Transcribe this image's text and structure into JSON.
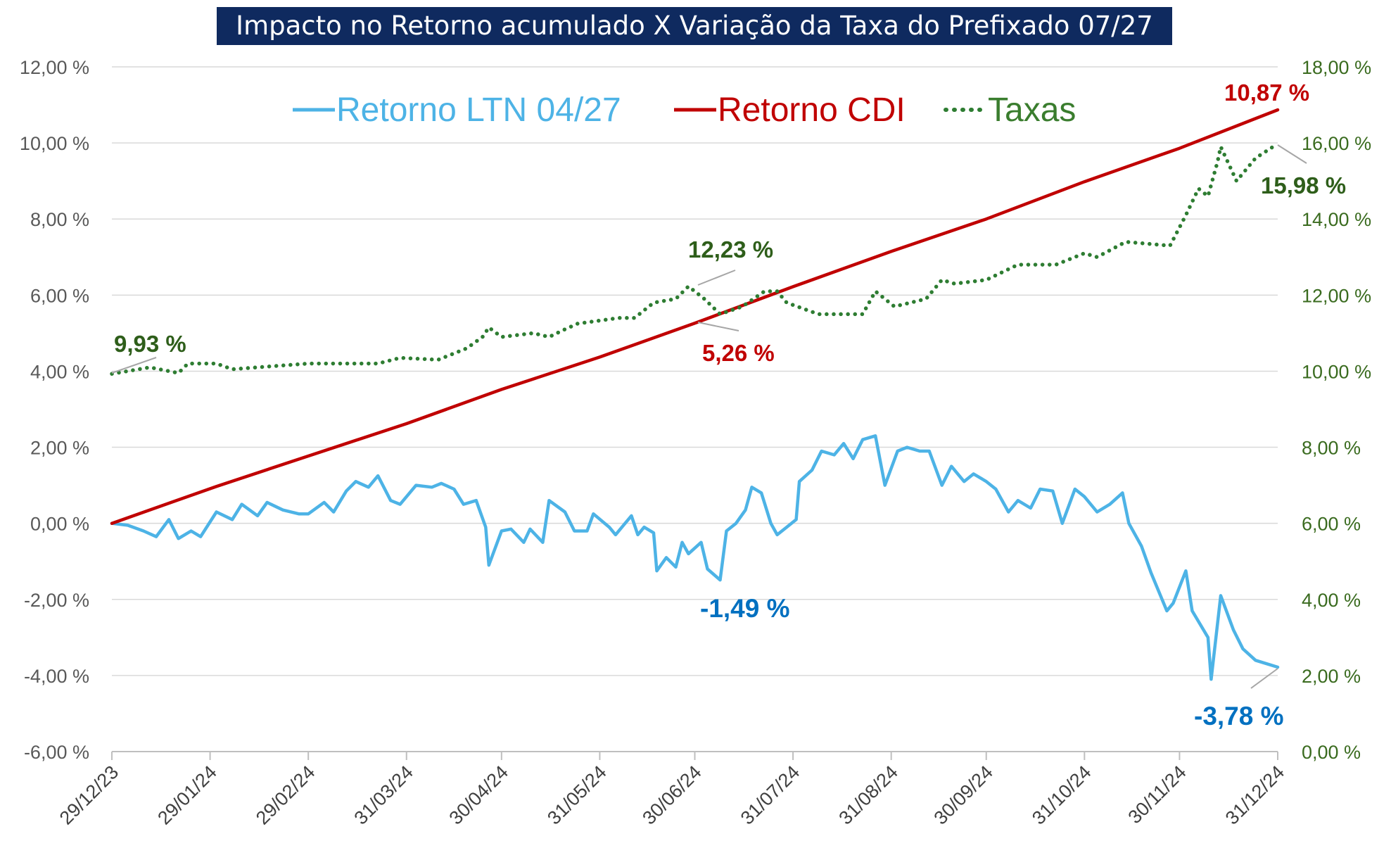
{
  "title": "Impacto no Retorno acumulado X Variação da Taxa do Prefixado 07/27",
  "colors": {
    "ltn": "#4db3e6",
    "cdi": "#c00000",
    "taxas": "#2e7d32",
    "title_bg": "#0f2a5f",
    "ltn_label": "#0070c0",
    "cdi_label": "#c00000",
    "taxas_label": "#2e5e1a",
    "grid": "#d9d9d9"
  },
  "legend": {
    "ltn": "Retorno LTN 04/27",
    "cdi": "Retorno CDI",
    "taxas": "Taxas"
  },
  "axes": {
    "left_ticks": [
      "12,00 %",
      "10,00 %",
      "8,00 %",
      "6,00 %",
      "4,00 %",
      "2,00 %",
      "0,00 %",
      "-2,00 %",
      "-4,00 %",
      "-6,00 %"
    ],
    "right_ticks": [
      "18,00 %",
      "16,00 %",
      "14,00 %",
      "12,00 %",
      "10,00 %",
      "8,00 %",
      "6,00 %",
      "4,00 %",
      "2,00 %",
      "0,00 %"
    ],
    "x_ticks": [
      "29/12/23",
      "29/01/24",
      "29/02/24",
      "31/03/24",
      "30/04/24",
      "31/05/24",
      "30/06/24",
      "31/07/24",
      "31/08/24",
      "30/09/24",
      "31/10/24",
      "30/11/24",
      "31/12/24"
    ]
  },
  "annotations": {
    "taxas_start": "9,93 %",
    "taxas_mid": "12,23 %",
    "taxas_end": "15,98 %",
    "cdi_mid": "5,26 %",
    "cdi_end": "10,87 %",
    "ltn_mid": "-1,49 %",
    "ltn_end": "-3,78 %"
  },
  "chart_data": {
    "type": "line",
    "title": "Impacto no Retorno acumulado X Variação da Taxa do Prefixado 07/27",
    "y_left_range": [
      -6,
      12
    ],
    "y_right_range": [
      0,
      18
    ],
    "x_range": [
      "2023-12-29",
      "2024-12-31"
    ],
    "grid": true,
    "legend_position": "top",
    "series": [
      {
        "name": "Retorno LTN 04/27",
        "axis": "left",
        "points": [
          [
            "2023-12-29",
            0.0
          ],
          [
            "2024-01-03",
            -0.05
          ],
          [
            "2024-01-08",
            -0.2
          ],
          [
            "2024-01-12",
            -0.35
          ],
          [
            "2024-01-16",
            0.1
          ],
          [
            "2024-01-19",
            -0.4
          ],
          [
            "2024-01-23",
            -0.2
          ],
          [
            "2024-01-26",
            -0.35
          ],
          [
            "2024-01-31",
            0.3
          ],
          [
            "2024-02-05",
            0.1
          ],
          [
            "2024-02-08",
            0.5
          ],
          [
            "2024-02-13",
            0.2
          ],
          [
            "2024-02-16",
            0.55
          ],
          [
            "2024-02-21",
            0.35
          ],
          [
            "2024-02-26",
            0.25
          ],
          [
            "2024-02-29",
            0.25
          ],
          [
            "2024-03-05",
            0.55
          ],
          [
            "2024-03-08",
            0.3
          ],
          [
            "2024-03-12",
            0.85
          ],
          [
            "2024-03-15",
            1.1
          ],
          [
            "2024-03-19",
            0.95
          ],
          [
            "2024-03-22",
            1.25
          ],
          [
            "2024-03-26",
            0.6
          ],
          [
            "2024-03-29",
            0.5
          ],
          [
            "2024-04-03",
            1.0
          ],
          [
            "2024-04-08",
            0.95
          ],
          [
            "2024-04-11",
            1.05
          ],
          [
            "2024-04-15",
            0.9
          ],
          [
            "2024-04-18",
            0.5
          ],
          [
            "2024-04-22",
            0.6
          ],
          [
            "2024-04-25",
            -0.1
          ],
          [
            "2024-04-26",
            -1.1
          ],
          [
            "2024-04-30",
            -0.2
          ],
          [
            "2024-05-03",
            -0.15
          ],
          [
            "2024-05-07",
            -0.5
          ],
          [
            "2024-05-09",
            -0.15
          ],
          [
            "2024-05-13",
            -0.5
          ],
          [
            "2024-05-15",
            0.6
          ],
          [
            "2024-05-20",
            0.3
          ],
          [
            "2024-05-23",
            -0.2
          ],
          [
            "2024-05-27",
            -0.2
          ],
          [
            "2024-05-29",
            0.25
          ],
          [
            "2024-06-03",
            -0.1
          ],
          [
            "2024-06-05",
            -0.3
          ],
          [
            "2024-06-10",
            0.2
          ],
          [
            "2024-06-12",
            -0.3
          ],
          [
            "2024-06-14",
            -0.1
          ],
          [
            "2024-06-17",
            -0.25
          ],
          [
            "2024-06-18",
            -1.25
          ],
          [
            "2024-06-21",
            -0.9
          ],
          [
            "2024-06-24",
            -1.15
          ],
          [
            "2024-06-26",
            -0.5
          ],
          [
            "2024-06-28",
            -0.8
          ],
          [
            "2024-07-02",
            -0.5
          ],
          [
            "2024-07-04",
            -1.2
          ],
          [
            "2024-07-08",
            -1.49
          ],
          [
            "2024-07-10",
            -0.2
          ],
          [
            "2024-07-13",
            0.0
          ],
          [
            "2024-07-16",
            0.35
          ],
          [
            "2024-07-18",
            0.95
          ],
          [
            "2024-07-21",
            0.8
          ],
          [
            "2024-07-24",
            0.0
          ],
          [
            "2024-07-26",
            -0.3
          ],
          [
            "2024-07-29",
            -0.1
          ],
          [
            "2024-08-01",
            0.1
          ],
          [
            "2024-08-02",
            1.1
          ],
          [
            "2024-08-06",
            1.4
          ],
          [
            "2024-08-09",
            1.9
          ],
          [
            "2024-08-13",
            1.8
          ],
          [
            "2024-08-16",
            2.1
          ],
          [
            "2024-08-19",
            1.7
          ],
          [
            "2024-08-22",
            2.2
          ],
          [
            "2024-08-26",
            2.3
          ],
          [
            "2024-08-29",
            1.0
          ],
          [
            "2024-09-02",
            1.9
          ],
          [
            "2024-09-05",
            2.0
          ],
          [
            "2024-09-09",
            1.9
          ],
          [
            "2024-09-12",
            1.9
          ],
          [
            "2024-09-16",
            1.0
          ],
          [
            "2024-09-19",
            1.5
          ],
          [
            "2024-09-23",
            1.1
          ],
          [
            "2024-09-26",
            1.3
          ],
          [
            "2024-09-30",
            1.1
          ],
          [
            "2024-10-03",
            0.9
          ],
          [
            "2024-10-07",
            0.3
          ],
          [
            "2024-10-10",
            0.6
          ],
          [
            "2024-10-14",
            0.4
          ],
          [
            "2024-10-17",
            0.9
          ],
          [
            "2024-10-21",
            0.85
          ],
          [
            "2024-10-24",
            0.0
          ],
          [
            "2024-10-28",
            0.9
          ],
          [
            "2024-10-31",
            0.7
          ],
          [
            "2024-11-04",
            0.3
          ],
          [
            "2024-11-08",
            0.5
          ],
          [
            "2024-11-12",
            0.8
          ],
          [
            "2024-11-14",
            0.0
          ],
          [
            "2024-11-18",
            -0.6
          ],
          [
            "2024-11-21",
            -1.3
          ],
          [
            "2024-11-26",
            -2.3
          ],
          [
            "2024-11-28",
            -2.1
          ],
          [
            "2024-12-02",
            -1.25
          ],
          [
            "2024-12-04",
            -2.3
          ],
          [
            "2024-12-09",
            -3.0
          ],
          [
            "2024-12-10",
            -4.1
          ],
          [
            "2024-12-13",
            -1.9
          ],
          [
            "2024-12-17",
            -2.8
          ],
          [
            "2024-12-20",
            -3.3
          ],
          [
            "2024-12-24",
            -3.6
          ],
          [
            "2024-12-31",
            -3.78
          ]
        ]
      },
      {
        "name": "Retorno CDI",
        "axis": "left",
        "points": [
          [
            "2023-12-29",
            0.0
          ],
          [
            "2024-01-31",
            0.97
          ],
          [
            "2024-02-29",
            1.77
          ],
          [
            "2024-03-31",
            2.62
          ],
          [
            "2024-04-30",
            3.52
          ],
          [
            "2024-05-31",
            4.37
          ],
          [
            "2024-06-30",
            5.26
          ],
          [
            "2024-07-31",
            6.22
          ],
          [
            "2024-08-31",
            7.15
          ],
          [
            "2024-09-30",
            8.0
          ],
          [
            "2024-10-31",
            8.98
          ],
          [
            "2024-11-30",
            9.86
          ],
          [
            "2024-12-31",
            10.87
          ]
        ]
      },
      {
        "name": "Taxas",
        "axis": "right",
        "points": [
          [
            "2023-12-29",
            9.93
          ],
          [
            "2024-01-10",
            10.1
          ],
          [
            "2024-01-19",
            9.95
          ],
          [
            "2024-01-22",
            10.2
          ],
          [
            "2024-01-31",
            10.2
          ],
          [
            "2024-02-05",
            10.05
          ],
          [
            "2024-02-29",
            10.2
          ],
          [
            "2024-03-12",
            10.2
          ],
          [
            "2024-03-22",
            10.2
          ],
          [
            "2024-03-29",
            10.35
          ],
          [
            "2024-04-10",
            10.3
          ],
          [
            "2024-04-19",
            10.6
          ],
          [
            "2024-04-24",
            10.9
          ],
          [
            "2024-04-26",
            11.15
          ],
          [
            "2024-04-30",
            10.9
          ],
          [
            "2024-05-10",
            11.0
          ],
          [
            "2024-05-15",
            10.9
          ],
          [
            "2024-05-20",
            11.1
          ],
          [
            "2024-05-24",
            11.25
          ],
          [
            "2024-06-06",
            11.4
          ],
          [
            "2024-06-11",
            11.4
          ],
          [
            "2024-06-17",
            11.8
          ],
          [
            "2024-06-24",
            11.9
          ],
          [
            "2024-06-28",
            12.23
          ],
          [
            "2024-07-03",
            11.9
          ],
          [
            "2024-07-08",
            11.5
          ],
          [
            "2024-07-15",
            11.7
          ],
          [
            "2024-07-22",
            12.1
          ],
          [
            "2024-07-26",
            12.1
          ],
          [
            "2024-07-29",
            11.8
          ],
          [
            "2024-08-08",
            11.5
          ],
          [
            "2024-08-22",
            11.5
          ],
          [
            "2024-08-26",
            12.1
          ],
          [
            "2024-09-01",
            11.7
          ],
          [
            "2024-09-11",
            11.9
          ],
          [
            "2024-09-16",
            12.4
          ],
          [
            "2024-09-20",
            12.3
          ],
          [
            "2024-09-30",
            12.4
          ],
          [
            "2024-10-10",
            12.8
          ],
          [
            "2024-10-22",
            12.8
          ],
          [
            "2024-10-31",
            13.1
          ],
          [
            "2024-11-04",
            13.0
          ],
          [
            "2024-11-13",
            13.4
          ],
          [
            "2024-11-27",
            13.3
          ],
          [
            "2024-12-02",
            14.1
          ],
          [
            "2024-12-06",
            14.8
          ],
          [
            "2024-12-09",
            14.6
          ],
          [
            "2024-12-12",
            15.5
          ],
          [
            "2024-12-13",
            15.9
          ],
          [
            "2024-12-18",
            15.0
          ],
          [
            "2024-12-24",
            15.6
          ],
          [
            "2024-12-31",
            15.98
          ]
        ]
      }
    ]
  }
}
